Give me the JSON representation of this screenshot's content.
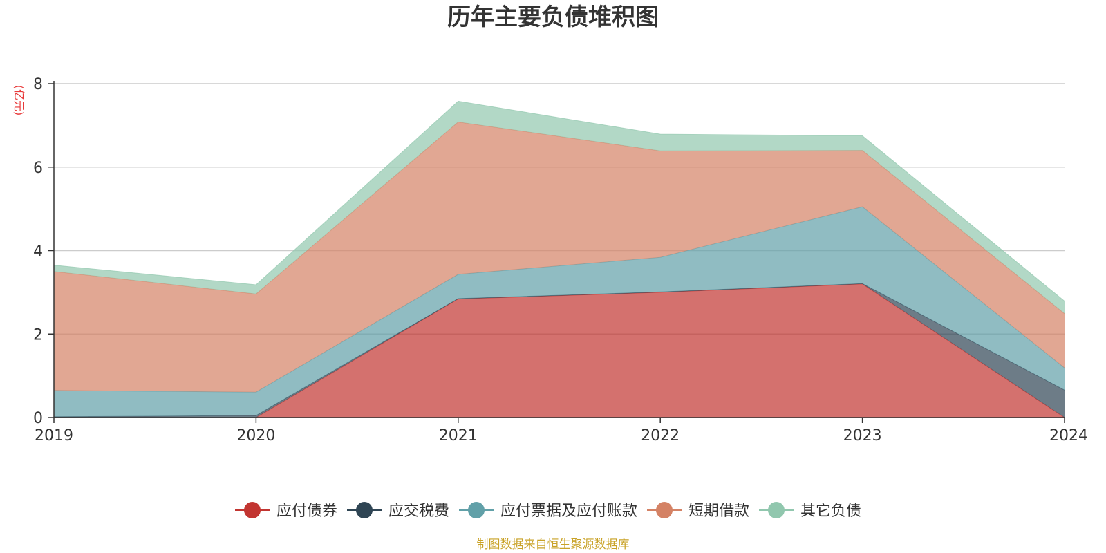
{
  "chart_data": {
    "type": "area",
    "stacked": true,
    "title": "历年主要负债堆积图",
    "ylabel": "(亿元)",
    "xlabel": "",
    "categories": [
      "2019",
      "2020",
      "2021",
      "2022",
      "2023",
      "2024"
    ],
    "ylim": [
      0,
      8
    ],
    "yticks": [
      "0",
      "2",
      "4",
      "6",
      "8"
    ],
    "grid": true,
    "legend_position": "bottom",
    "series": [
      {
        "name": "应付债券",
        "color": "#c23531",
        "values": [
          0,
          0,
          2.84,
          3.0,
          3.2,
          0
        ]
      },
      {
        "name": "应交税费",
        "color": "#2f4554",
        "values": [
          0.02,
          0.05,
          0.01,
          0.01,
          0.01,
          0.66
        ]
      },
      {
        "name": "应付票据及应付账款",
        "color": "#61a0a8",
        "values": [
          0.63,
          0.56,
          0.58,
          0.83,
          1.84,
          0.53
        ]
      },
      {
        "name": "短期借款",
        "color": "#d48265",
        "values": [
          2.85,
          2.35,
          3.65,
          2.55,
          1.35,
          1.3
        ]
      },
      {
        "name": "其它负债",
        "color": "#91c7ae",
        "values": [
          0.15,
          0.22,
          0.5,
          0.4,
          0.35,
          0.3
        ]
      }
    ]
  },
  "source_note": "制图数据来自恒生聚源数据库"
}
